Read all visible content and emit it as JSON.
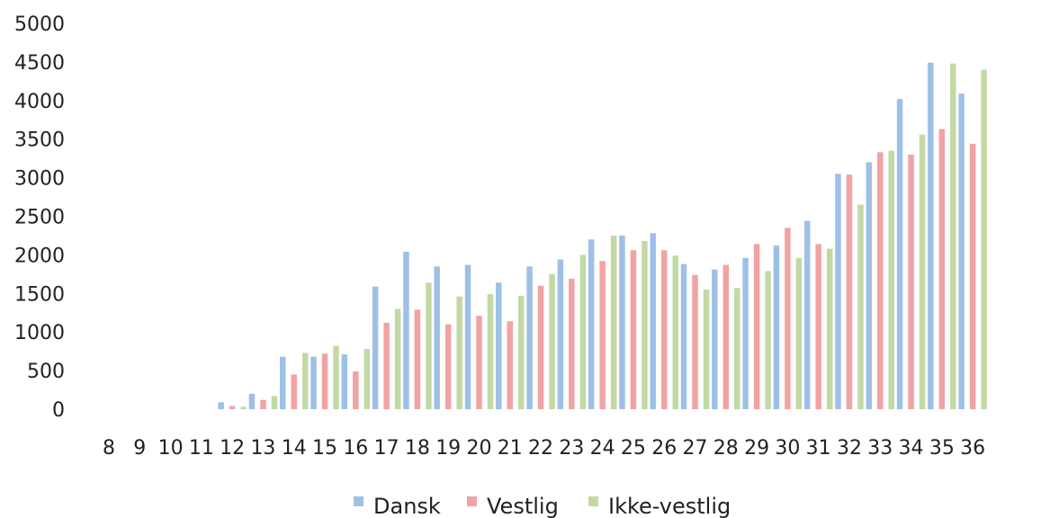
{
  "chart_data": {
    "type": "bar",
    "categories": [
      "8",
      "9",
      "10",
      "11",
      "12",
      "13",
      "14",
      "15",
      "16",
      "17",
      "18",
      "19",
      "20",
      "21",
      "22",
      "23",
      "24",
      "25",
      "26",
      "27",
      "28",
      "29",
      "30",
      "31",
      "32",
      "33",
      "34",
      "35",
      "36"
    ],
    "series": [
      {
        "name": "Dansk",
        "color": "#9ec0e6",
        "values": [
          0,
          0,
          0,
          0,
          90,
          200,
          680,
          680,
          710,
          1590,
          2040,
          1850,
          1870,
          1640,
          1850,
          1940,
          2200,
          2250,
          2280,
          1880,
          1810,
          1960,
          2120,
          2440,
          3050,
          3200,
          4020,
          4490,
          4090
        ]
      },
      {
        "name": "Vestlig",
        "color": "#f1a3a3",
        "values": [
          0,
          0,
          0,
          0,
          40,
          120,
          450,
          720,
          490,
          1120,
          1290,
          1100,
          1210,
          1140,
          1600,
          1690,
          1920,
          2060,
          2060,
          1740,
          1870,
          2140,
          2350,
          2140,
          3040,
          3330,
          3300,
          3630,
          3440
        ]
      },
      {
        "name": "Ikke-vestlig",
        "color": "#c2d9a4",
        "values": [
          0,
          0,
          0,
          0,
          30,
          170,
          730,
          820,
          780,
          1300,
          1640,
          1460,
          1490,
          1470,
          1750,
          2000,
          2250,
          2180,
          1990,
          1550,
          1570,
          1790,
          1960,
          2080,
          2650,
          3350,
          3560,
          4480,
          4400
        ]
      }
    ],
    "yticks": [
      "0",
      "500",
      "1000",
      "1500",
      "2000",
      "2500",
      "3000",
      "3500",
      "4000",
      "4500",
      "5000"
    ],
    "ylim": [
      0,
      5000
    ],
    "grid": false,
    "legend_position": "bottom"
  }
}
